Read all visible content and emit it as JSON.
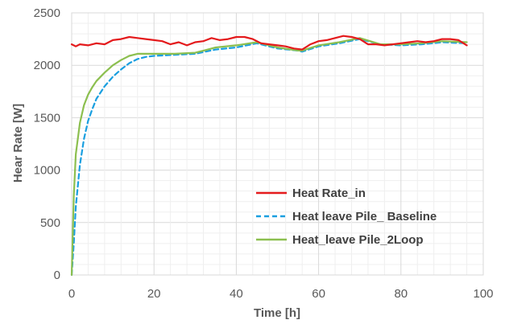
{
  "chart_data": {
    "type": "line",
    "xlabel": "Time [h]",
    "ylabel": "Hear Rate [W]",
    "xlim": [
      0,
      100
    ],
    "ylim": [
      0,
      2500
    ],
    "x_ticks": [
      "0",
      "20",
      "40",
      "60",
      "80",
      "100"
    ],
    "y_ticks": [
      "0",
      "500",
      "1000",
      "1500",
      "2000",
      "2500"
    ],
    "grid": true,
    "legend_position": "lower-right",
    "series": [
      {
        "name": "Heat Rate_in",
        "color": "#e41a1c",
        "style": "solid",
        "x": [
          0,
          1,
          2,
          4,
          6,
          8,
          10,
          12,
          14,
          16,
          18,
          20,
          22,
          24,
          26,
          28,
          30,
          32,
          34,
          36,
          38,
          40,
          42,
          44,
          46,
          48,
          50,
          52,
          54,
          56,
          58,
          60,
          62,
          64,
          66,
          68,
          70,
          72,
          74,
          76,
          78,
          80,
          82,
          84,
          86,
          88,
          90,
          92,
          94,
          96
        ],
        "y": [
          2200,
          2180,
          2200,
          2190,
          2210,
          2200,
          2240,
          2250,
          2270,
          2260,
          2250,
          2240,
          2230,
          2200,
          2220,
          2190,
          2220,
          2230,
          2260,
          2240,
          2250,
          2270,
          2270,
          2250,
          2210,
          2200,
          2190,
          2180,
          2160,
          2150,
          2200,
          2230,
          2240,
          2260,
          2280,
          2270,
          2250,
          2200,
          2200,
          2190,
          2200,
          2210,
          2220,
          2230,
          2220,
          2230,
          2250,
          2250,
          2240,
          2190
        ]
      },
      {
        "name": "Heat leave Pile_ Baseline",
        "color": "#1a9fe0",
        "style": "dashed",
        "x": [
          0,
          0.5,
          1,
          2,
          3,
          4,
          5,
          6,
          8,
          10,
          12,
          14,
          16,
          18,
          20,
          25,
          30,
          35,
          40,
          45,
          50,
          55,
          56,
          60,
          65,
          70,
          75,
          80,
          85,
          90,
          96
        ],
        "y": [
          0,
          300,
          650,
          1050,
          1300,
          1470,
          1580,
          1680,
          1800,
          1890,
          1960,
          2020,
          2060,
          2080,
          2090,
          2100,
          2110,
          2150,
          2170,
          2210,
          2160,
          2140,
          2130,
          2180,
          2210,
          2250,
          2200,
          2190,
          2200,
          2220,
          2210
        ]
      },
      {
        "name": "Heat_leave Pile_2Loop",
        "color": "#8cbf4f",
        "style": "solid",
        "x": [
          0,
          0.5,
          1,
          2,
          3,
          4,
          5,
          6,
          8,
          10,
          12,
          14,
          16,
          18,
          20,
          25,
          30,
          35,
          40,
          45,
          50,
          55,
          56,
          60,
          65,
          70,
          75,
          80,
          85,
          90,
          96
        ],
        "y": [
          0,
          750,
          1150,
          1450,
          1620,
          1720,
          1790,
          1850,
          1930,
          2000,
          2050,
          2090,
          2110,
          2110,
          2110,
          2110,
          2120,
          2170,
          2190,
          2220,
          2170,
          2140,
          2140,
          2190,
          2220,
          2260,
          2200,
          2200,
          2210,
          2230,
          2220
        ]
      }
    ]
  }
}
